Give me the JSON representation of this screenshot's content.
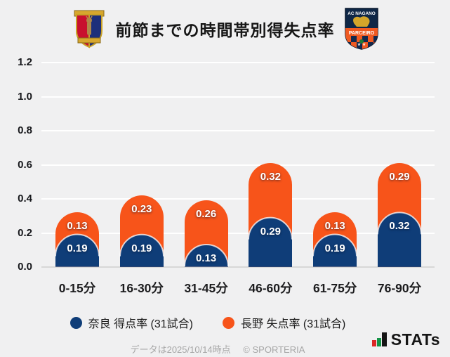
{
  "header": {
    "title": "前節までの時間帯別得失点率",
    "right_crest": {
      "top_text": "AC NAGANO",
      "banner_text": "PARCEIRO"
    }
  },
  "chart_data": {
    "type": "bar",
    "stacked": true,
    "title": "前節までの時間帯別得失点率",
    "categories": [
      "0-15分",
      "16-30分",
      "31-45分",
      "46-60分",
      "61-75分",
      "76-90分"
    ],
    "series": [
      {
        "name": "奈良 得点率 (31試合)",
        "color": "#0f3d78",
        "values": [
          0.19,
          0.19,
          0.13,
          0.29,
          0.19,
          0.32
        ]
      },
      {
        "name": "長野 失点率 (31試合)",
        "color": "#f7541a",
        "values": [
          0.13,
          0.23,
          0.26,
          0.32,
          0.13,
          0.29
        ]
      }
    ],
    "ylim": [
      0,
      1.2
    ],
    "yticks": [
      0,
      0.2,
      0.4,
      0.6,
      0.8,
      1.0,
      1.2
    ],
    "grid": true,
    "legend_position": "bottom",
    "value_labels": true,
    "background": "#f0f0f1",
    "gridline_color": "#ffffff"
  },
  "footer": {
    "note": "データは2025/10/14時点",
    "copyright": "© SPORTERIA",
    "brand": "STATs"
  }
}
